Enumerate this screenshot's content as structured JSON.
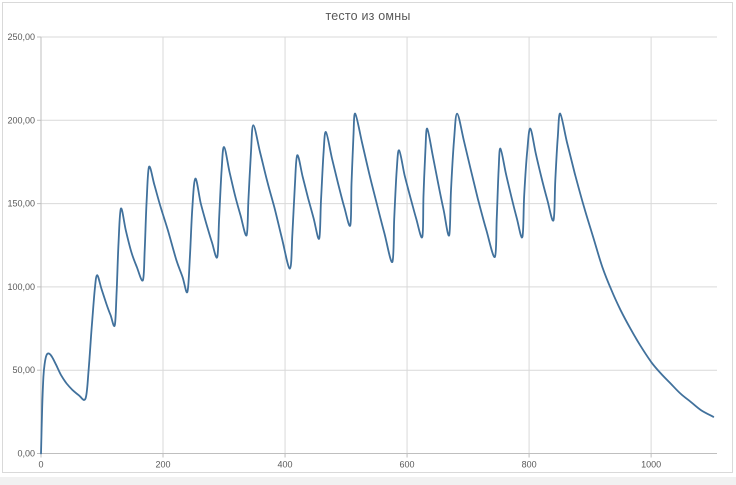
{
  "colors": {
    "line": "#41719c",
    "gridline": "#d9d9d9",
    "axis": "#bfbfbf",
    "text": "#595959",
    "frame_border": "#d9d9d9",
    "background": "#ffffff"
  },
  "chart_data": {
    "type": "line",
    "title": "тесто из омны",
    "xlabel": "",
    "ylabel": "",
    "xlim": [
      0,
      1108
    ],
    "ylim": [
      0,
      250
    ],
    "grid": true,
    "legend": "none",
    "x_ticks": [
      {
        "v": 0,
        "label": "0"
      },
      {
        "v": 200,
        "label": "200"
      },
      {
        "v": 400,
        "label": "400"
      },
      {
        "v": 600,
        "label": "600"
      },
      {
        "v": 800,
        "label": "800"
      },
      {
        "v": 1000,
        "label": "1000"
      }
    ],
    "y_ticks": [
      {
        "v": 0,
        "label": "0,00"
      },
      {
        "v": 50,
        "label": "50,00"
      },
      {
        "v": 100,
        "label": "100,00"
      },
      {
        "v": 150,
        "label": "150,00"
      },
      {
        "v": 200,
        "label": "200,00"
      },
      {
        "v": 250,
        "label": "250,00"
      }
    ],
    "series": [
      {
        "name": "тесто из омны",
        "color": "#41719c",
        "points": [
          [
            0,
            0
          ],
          [
            2,
            28
          ],
          [
            4,
            46
          ],
          [
            6,
            54
          ],
          [
            9,
            59
          ],
          [
            13,
            60
          ],
          [
            18,
            58
          ],
          [
            25,
            53
          ],
          [
            33,
            47
          ],
          [
            42,
            42
          ],
          [
            52,
            38
          ],
          [
            62,
            35
          ],
          [
            73,
            33
          ],
          [
            78,
            50
          ],
          [
            83,
            75
          ],
          [
            88,
            98
          ],
          [
            92,
            107
          ],
          [
            99,
            99
          ],
          [
            107,
            90
          ],
          [
            114,
            83
          ],
          [
            121,
            77
          ],
          [
            124,
            98
          ],
          [
            127,
            126
          ],
          [
            131,
            147
          ],
          [
            139,
            134
          ],
          [
            148,
            121
          ],
          [
            157,
            112
          ],
          [
            167,
            104
          ],
          [
            170,
            122
          ],
          [
            173,
            150
          ],
          [
            177,
            172
          ],
          [
            186,
            161
          ],
          [
            196,
            148
          ],
          [
            208,
            134
          ],
          [
            222,
            116
          ],
          [
            232,
            106
          ],
          [
            240,
            97
          ],
          [
            244,
            118
          ],
          [
            248,
            147
          ],
          [
            253,
            165
          ],
          [
            262,
            150
          ],
          [
            271,
            138
          ],
          [
            280,
            127
          ],
          [
            289,
            118
          ],
          [
            292,
            142
          ],
          [
            296,
            170
          ],
          [
            300,
            184
          ],
          [
            309,
            169
          ],
          [
            318,
            155
          ],
          [
            327,
            143
          ],
          [
            337,
            131
          ],
          [
            340,
            152
          ],
          [
            344,
            180
          ],
          [
            348,
            197
          ],
          [
            359,
            181
          ],
          [
            371,
            163
          ],
          [
            383,
            147
          ],
          [
            395,
            129
          ],
          [
            408,
            111
          ],
          [
            412,
            132
          ],
          [
            416,
            160
          ],
          [
            420,
            179
          ],
          [
            429,
            166
          ],
          [
            438,
            153
          ],
          [
            447,
            141
          ],
          [
            456,
            129
          ],
          [
            459,
            152
          ],
          [
            463,
            180
          ],
          [
            467,
            193
          ],
          [
            477,
            177
          ],
          [
            487,
            162
          ],
          [
            497,
            148
          ],
          [
            507,
            137
          ],
          [
            509,
            162
          ],
          [
            512,
            190
          ],
          [
            515,
            204
          ],
          [
            526,
            187
          ],
          [
            538,
            168
          ],
          [
            551,
            149
          ],
          [
            563,
            132
          ],
          [
            576,
            115
          ],
          [
            579,
            142
          ],
          [
            583,
            170
          ],
          [
            587,
            182
          ],
          [
            596,
            167
          ],
          [
            606,
            153
          ],
          [
            615,
            141
          ],
          [
            625,
            130
          ],
          [
            627,
            155
          ],
          [
            630,
            182
          ],
          [
            633,
            195
          ],
          [
            642,
            179
          ],
          [
            651,
            162
          ],
          [
            660,
            146
          ],
          [
            669,
            131
          ],
          [
            672,
            158
          ],
          [
            677,
            188
          ],
          [
            682,
            204
          ],
          [
            693,
            188
          ],
          [
            704,
            171
          ],
          [
            716,
            153
          ],
          [
            730,
            134
          ],
          [
            744,
            118
          ],
          [
            747,
            142
          ],
          [
            750,
            170
          ],
          [
            753,
            183
          ],
          [
            762,
            168
          ],
          [
            771,
            154
          ],
          [
            780,
            141
          ],
          [
            789,
            130
          ],
          [
            792,
            155
          ],
          [
            797,
            182
          ],
          [
            802,
            195
          ],
          [
            811,
            180
          ],
          [
            820,
            166
          ],
          [
            830,
            152
          ],
          [
            840,
            140
          ],
          [
            843,
            164
          ],
          [
            847,
            190
          ],
          [
            851,
            204
          ],
          [
            862,
            187
          ],
          [
            875,
            168
          ],
          [
            890,
            148
          ],
          [
            905,
            130
          ],
          [
            920,
            112
          ],
          [
            935,
            98
          ],
          [
            950,
            86
          ],
          [
            966,
            75
          ],
          [
            982,
            65
          ],
          [
            1000,
            55
          ],
          [
            1016,
            48
          ],
          [
            1032,
            42
          ],
          [
            1048,
            36
          ],
          [
            1065,
            31
          ],
          [
            1082,
            26
          ],
          [
            1102,
            22
          ]
        ]
      }
    ]
  }
}
